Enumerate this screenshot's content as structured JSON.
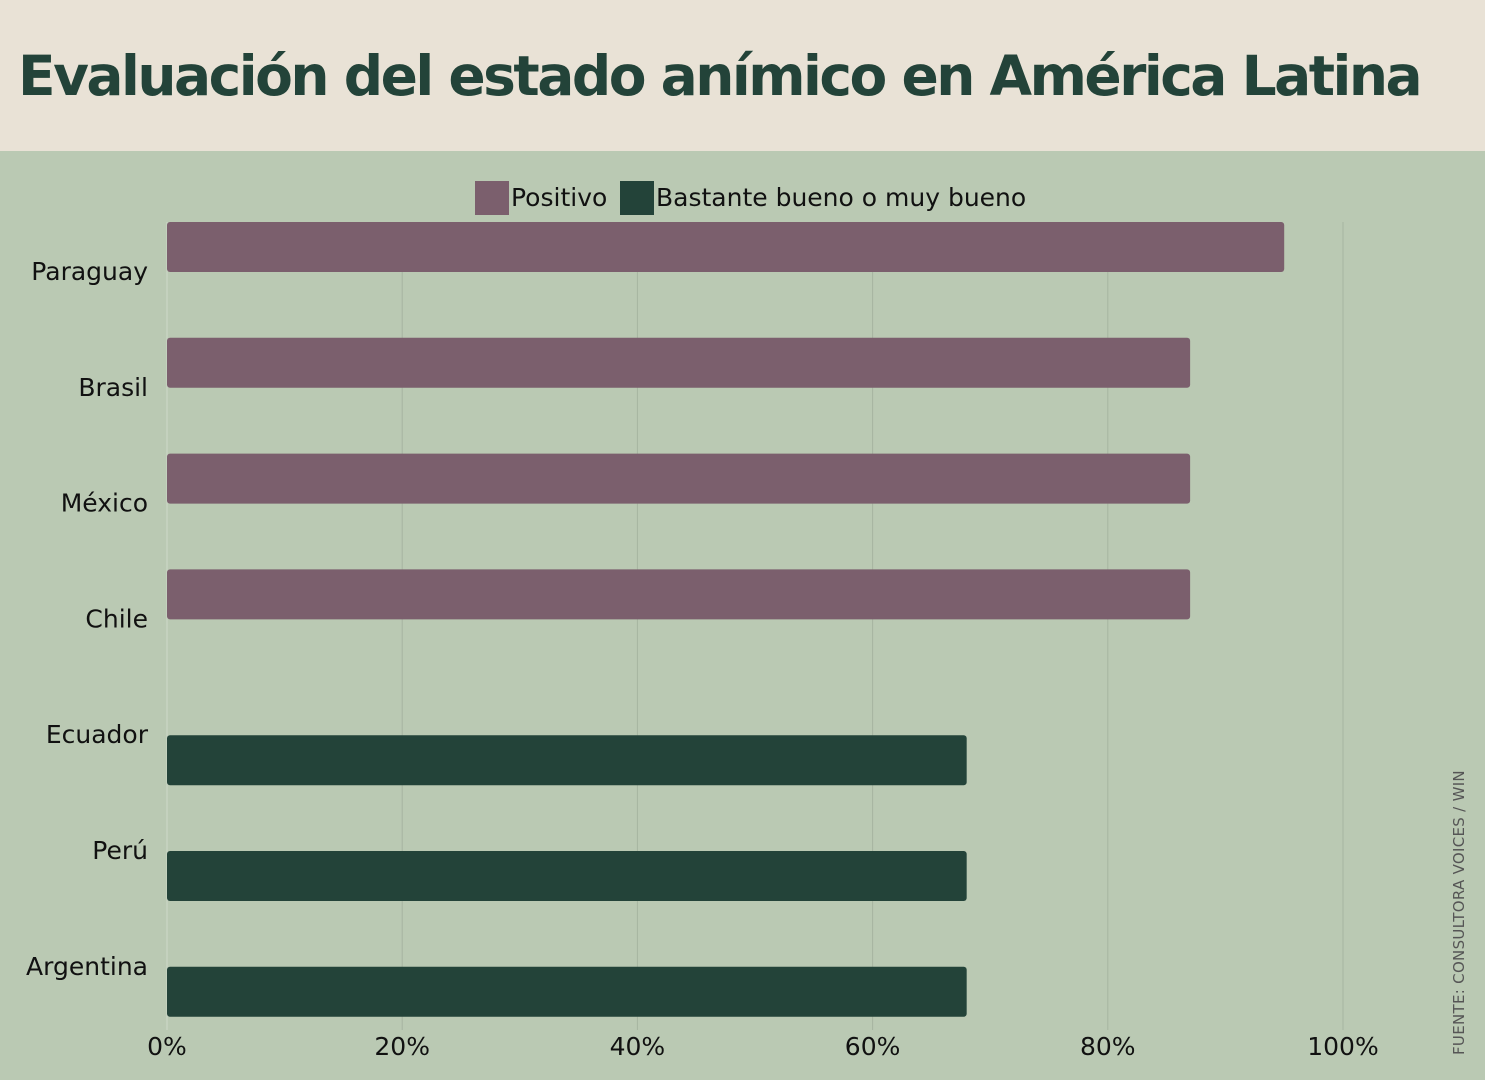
{
  "title": "Evaluación del estado anímico en  América Latina",
  "source": "FUENTE: CONSULTORA VOICES / WIN",
  "colors": {
    "positivo": "#7b5f6d",
    "bastante": "#234339",
    "background": "#bac9b3",
    "header": "#e9e2d6",
    "grid": "#a6b5a0"
  },
  "chart_data": {
    "type": "bar",
    "orientation": "horizontal",
    "categories": [
      "Paraguay",
      "Brasil",
      "México",
      "Chile",
      "Ecuador",
      "Perú",
      "Argentina"
    ],
    "series": [
      {
        "name": "Positivo",
        "values": [
          95,
          87,
          87,
          87,
          0,
          0,
          0
        ]
      },
      {
        "name": "Bastante bueno o muy bueno",
        "values": [
          0,
          0,
          0,
          0,
          68,
          68,
          68
        ]
      }
    ],
    "xlim": [
      0,
      100
    ],
    "xticks": [
      "0%",
      "20%",
      "40%",
      "60%",
      "80%",
      "100%"
    ],
    "grid": true,
    "legend": "top-center"
  }
}
